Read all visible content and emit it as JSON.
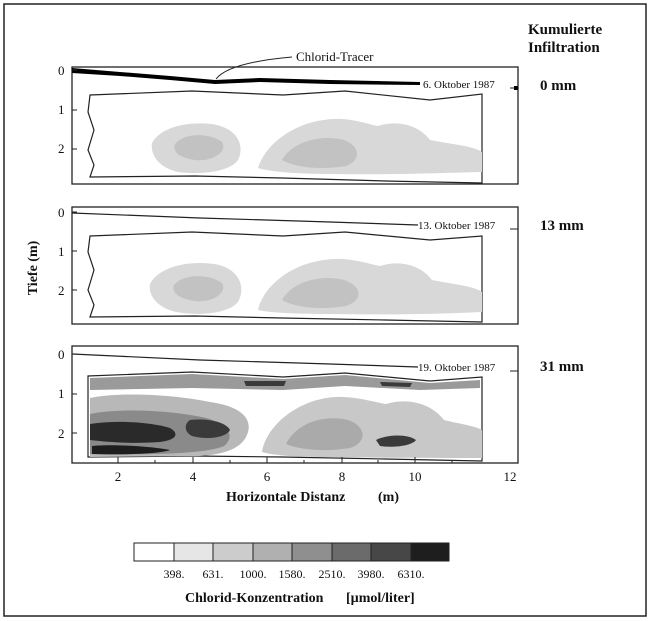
{
  "header": {
    "title_line1": "Kumulierte",
    "title_line2": "Infiltration"
  },
  "tracer_label": "Chlorid-Tracer",
  "panels": [
    {
      "date": "6. Oktober 1987",
      "infiltration": "0 mm"
    },
    {
      "date": "13. Oktober 1987",
      "infiltration": "13 mm"
    },
    {
      "date": "19. Oktober 1987",
      "infiltration": "31 mm"
    }
  ],
  "y_axis": {
    "label": "Tiefe (m)",
    "ticks": [
      "0",
      "1",
      "2"
    ]
  },
  "x_axis": {
    "label": "Horizontale Distanz",
    "unit": "(m)",
    "ticks": [
      "2",
      "4",
      "6",
      "8",
      "10",
      "12"
    ]
  },
  "legend": {
    "title": "Chlorid-Konzentration",
    "unit": "[µmol/liter]",
    "bounds": [
      "398.",
      "631.",
      "1000.",
      "1580.",
      "2510.",
      "3980.",
      "6310."
    ],
    "colors": [
      "#ffffff",
      "#e6e6e6",
      "#cccccc",
      "#b0b0b0",
      "#8f8f8f",
      "#6b6b6b",
      "#474747",
      "#1e1e1e"
    ]
  }
}
